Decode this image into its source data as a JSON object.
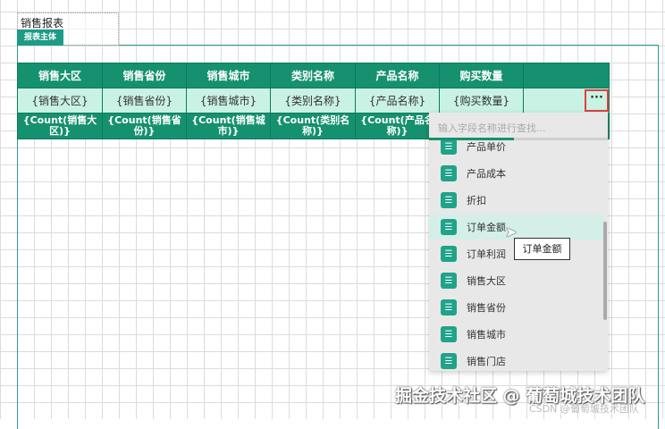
{
  "report_title": "销售报表",
  "section_tab": "报表主体",
  "table": {
    "headers": [
      "销售大区",
      "销售省份",
      "销售城市",
      "类别名称",
      "产品名称",
      "购买数量",
      ""
    ],
    "data_row": [
      "{销售大区}",
      "{销售省份}",
      "{销售城市}",
      "{类别名称}",
      "{产品名称}",
      "{购买数量}",
      ""
    ],
    "count_row": [
      "{Count(销售大区)}",
      "{Count(销售省份)}",
      "{Count(销售城市)}",
      "{Count(类别名称)}",
      "{Count(产品名称)}",
      "",
      ""
    ]
  },
  "more_button": "···",
  "field_dropdown": {
    "search_placeholder": "输入字段名称进行查找...",
    "items": [
      "产品单价",
      "产品成本",
      "折扣",
      "订单金额",
      "订单利润",
      "销售大区",
      "销售省份",
      "销售城市",
      "销售门店"
    ],
    "highlighted": "订单金额",
    "item_icon": "database-icon"
  },
  "tooltip": "订单金额",
  "watermark": "掘金技术社区 @ 葡萄城技术团队",
  "watermark_small": "CSDN @葡萄城技术团队",
  "colors": {
    "accent": "#16916f",
    "data_row": "#c9f2e4",
    "highlight_border": "#e0413c"
  }
}
